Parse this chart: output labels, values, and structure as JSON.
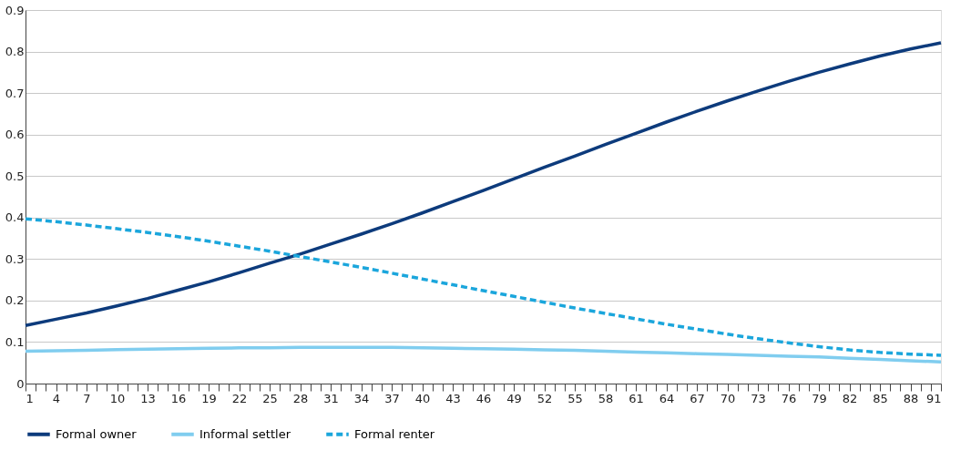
{
  "chart_data": {
    "type": "line",
    "x": [
      1,
      4,
      7,
      10,
      13,
      16,
      19,
      22,
      25,
      28,
      31,
      34,
      37,
      40,
      43,
      46,
      49,
      52,
      55,
      58,
      61,
      64,
      67,
      70,
      73,
      76,
      79,
      82,
      85,
      88,
      91
    ],
    "series": [
      {
        "name": "Formal owner",
        "color": "#0d3b7c",
        "line_style": "solid",
        "values": [
          0.14,
          0.155,
          0.17,
          0.187,
          0.205,
          0.225,
          0.245,
          0.267,
          0.29,
          0.312,
          0.336,
          0.36,
          0.385,
          0.411,
          0.438,
          0.465,
          0.493,
          0.521,
          0.548,
          0.576,
          0.603,
          0.63,
          0.656,
          0.681,
          0.705,
          0.728,
          0.75,
          0.77,
          0.789,
          0.806,
          0.821
        ]
      },
      {
        "name": "Informal settler",
        "color": "#80cdef",
        "line_style": "solid",
        "values": [
          0.078,
          0.079,
          0.08,
          0.082,
          0.083,
          0.084,
          0.085,
          0.086,
          0.086,
          0.087,
          0.087,
          0.087,
          0.087,
          0.086,
          0.085,
          0.084,
          0.083,
          0.081,
          0.08,
          0.078,
          0.076,
          0.074,
          0.072,
          0.07,
          0.068,
          0.066,
          0.064,
          0.061,
          0.058,
          0.055,
          0.052
        ]
      },
      {
        "name": "Formal renter",
        "color": "#1ba6dc",
        "line_style": "dashed",
        "values": [
          0.397,
          0.39,
          0.382,
          0.373,
          0.364,
          0.354,
          0.343,
          0.331,
          0.319,
          0.306,
          0.293,
          0.28,
          0.266,
          0.252,
          0.238,
          0.224,
          0.21,
          0.196,
          0.182,
          0.169,
          0.156,
          0.143,
          0.131,
          0.119,
          0.108,
          0.098,
          0.089,
          0.081,
          0.075,
          0.071,
          0.068
        ]
      }
    ],
    "xlim": [
      1,
      91
    ],
    "xticks": [
      1,
      {
        "value": 2,
        "label": null
      },
      {
        "value": 3,
        "label": null
      },
      4,
      {
        "value": 5,
        "label": null
      },
      {
        "value": 6,
        "label": null
      },
      7,
      {
        "value": 8,
        "label": null
      },
      {
        "value": 9,
        "label": null
      },
      10,
      {
        "value": 11,
        "label": null
      },
      {
        "value": 12,
        "label": null
      },
      13,
      {
        "value": 14,
        "label": null
      },
      {
        "value": 15,
        "label": null
      },
      16,
      {
        "value": 17,
        "label": null
      },
      {
        "value": 18,
        "label": null
      },
      19,
      {
        "value": 20,
        "label": null
      },
      {
        "value": 21,
        "label": null
      },
      22,
      {
        "value": 23,
        "label": null
      },
      {
        "value": 24,
        "label": null
      },
      25,
      {
        "value": 26,
        "label": null
      },
      {
        "value": 27,
        "label": null
      },
      28,
      {
        "value": 29,
        "label": null
      },
      {
        "value": 30,
        "label": null
      },
      31,
      {
        "value": 32,
        "label": null
      },
      {
        "value": 33,
        "label": null
      },
      34,
      {
        "value": 35,
        "label": null
      },
      {
        "value": 36,
        "label": null
      },
      37,
      {
        "value": 38,
        "label": null
      },
      {
        "value": 39,
        "label": null
      },
      40,
      {
        "value": 41,
        "label": null
      },
      {
        "value": 42,
        "label": null
      },
      43,
      {
        "value": 44,
        "label": null
      },
      {
        "value": 45,
        "label": null
      },
      46,
      {
        "value": 47,
        "label": null
      },
      {
        "value": 48,
        "label": null
      },
      49,
      {
        "value": 50,
        "label": null
      },
      {
        "value": 51,
        "label": null
      },
      52,
      {
        "value": 53,
        "label": null
      },
      {
        "value": 54,
        "label": null
      },
      55,
      {
        "value": 56,
        "label": null
      },
      {
        "value": 57,
        "label": null
      },
      58,
      {
        "value": 59,
        "label": null
      },
      {
        "value": 60,
        "label": null
      },
      61,
      {
        "value": 62,
        "label": null
      },
      {
        "value": 63,
        "label": null
      },
      64,
      {
        "value": 65,
        "label": null
      },
      {
        "value": 66,
        "label": null
      },
      67,
      {
        "value": 68,
        "label": null
      },
      {
        "value": 69,
        "label": null
      },
      70,
      {
        "value": 71,
        "label": null
      },
      {
        "value": 72,
        "label": null
      },
      73,
      {
        "value": 74,
        "label": null
      },
      {
        "value": 75,
        "label": null
      },
      76,
      {
        "value": 77,
        "label": null
      },
      {
        "value": 78,
        "label": null
      },
      79,
      {
        "value": 80,
        "label": null
      },
      {
        "value": 81,
        "label": null
      },
      82,
      {
        "value": 83,
        "label": null
      },
      {
        "value": 84,
        "label": null
      },
      85,
      {
        "value": 86,
        "label": null
      },
      {
        "value": 87,
        "label": null
      },
      88,
      {
        "value": 89,
        "label": null
      },
      {
        "value": 90,
        "label": null
      },
      91
    ],
    "ylim": [
      0,
      0.9
    ],
    "yticks": [
      0,
      0.1,
      0.2,
      0.3,
      0.4,
      0.5,
      0.6,
      0.7,
      0.8,
      0.9
    ],
    "grid": "y",
    "legend": "bottom",
    "marker": "none"
  }
}
